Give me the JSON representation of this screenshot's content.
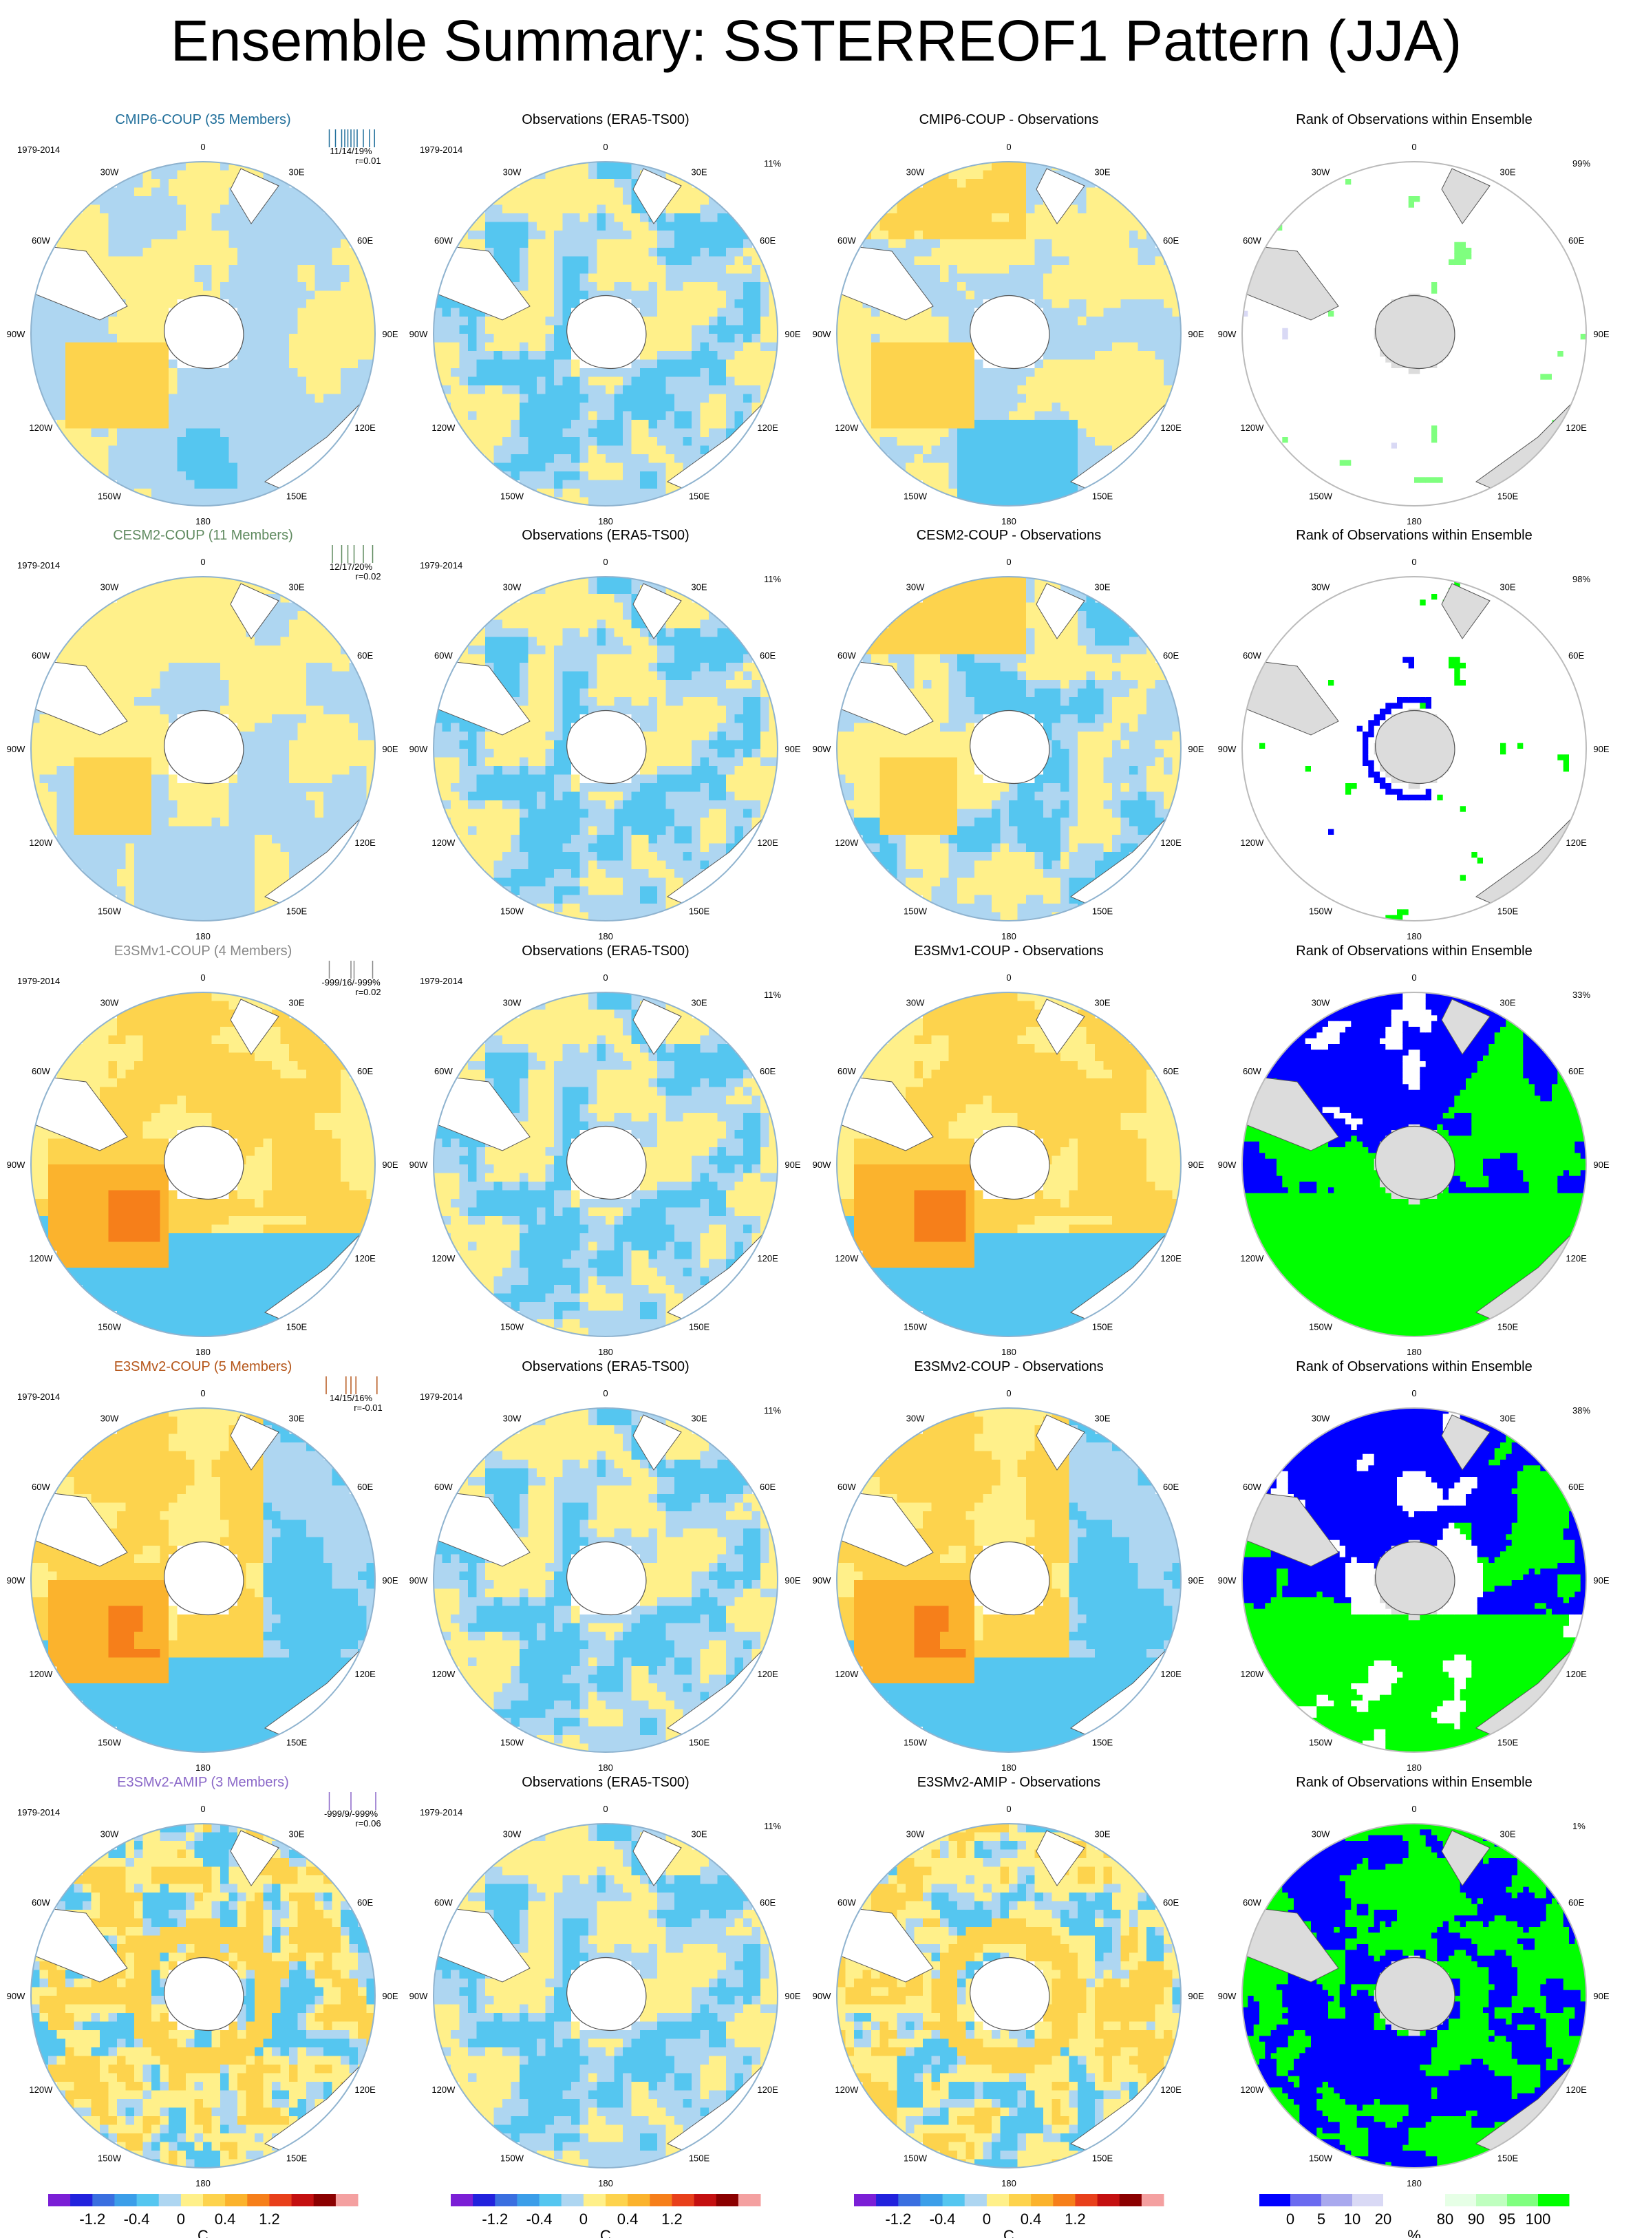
{
  "title": "Ensemble Summary: SSTERREOF1 Pattern (JJA)",
  "period": "1979-2014",
  "lon_labels": [
    "0",
    "30E",
    "60E",
    "90E",
    "120E",
    "150E",
    "180",
    "150W",
    "120W",
    "90W",
    "60W",
    "30W"
  ],
  "colors": {
    "cmip6": "#1f6e9a",
    "cesm2": "#5f8a5f",
    "e3smv1": "#888888",
    "e3smv2": "#b5561a",
    "amip": "#8a67c8",
    "land_gray": "#dcdcdc",
    "ocean_outline": "#bfbfbf"
  },
  "chart_data": {
    "type": "heatmap",
    "units_anomaly": "C",
    "units_rank": "%",
    "anomaly_colorbar": {
      "colors": [
        "#7b1fd6",
        "#2222dd",
        "#3a6fe0",
        "#3b9ee9",
        "#55c6f0",
        "#aed6f1",
        "#fff08a",
        "#fdd34d",
        "#fbb32d",
        "#f67f1a",
        "#e8401b",
        "#c41010",
        "#8b0000",
        "#f4a0a0"
      ],
      "tick_labels": [
        "-1.2",
        "-0.4",
        "0",
        "0.4",
        "1.2"
      ],
      "tick_positions": [
        2,
        4,
        6,
        8,
        10
      ]
    },
    "rank_colorbar": {
      "colors": [
        "#0000ff",
        "#6b6bf0",
        "#a9a9ee",
        "#d9d9f5",
        "#ffffff",
        "#ffffff",
        "#e6ffe6",
        "#bfffbf",
        "#7fff7f",
        "#00ff00"
      ],
      "tick_labels": [
        "0",
        "5",
        "10",
        "20",
        "80",
        "90",
        "95",
        "100"
      ],
      "tick_positions": [
        1,
        2,
        3,
        4,
        6,
        7,
        8,
        9
      ]
    },
    "rows": [
      {
        "model": "CMIP6-COUP (35 Members)",
        "color_key": "cmip6",
        "stats": "11/14/19%",
        "r": "r=0.01",
        "obs_title": "Observations (ERA5-TS00)",
        "obs_pct": "11%",
        "diff_title": "CMIP6-COUP - Observations",
        "rank_title": "Rank of Observations within Ensemble",
        "rank_pct": "99%",
        "ticks": [
          0.15,
          0.25,
          0.35,
          0.4,
          0.45,
          0.5,
          0.55,
          0.6,
          0.7,
          0.8,
          0.88
        ],
        "model_field": "cmip6",
        "diff_field": "cmip6diff",
        "rank_field": "rank_sparse_a"
      },
      {
        "model": "CESM2-COUP (11 Members)",
        "color_key": "cesm2",
        "stats": "12/17/20%",
        "r": "r=0.02",
        "obs_title": "Observations (ERA5-TS00)",
        "obs_pct": "11%",
        "diff_title": "CESM2-COUP - Observations",
        "rank_title": "Rank of Observations within Ensemble",
        "rank_pct": "98%",
        "ticks": [
          0.2,
          0.35,
          0.45,
          0.55,
          0.7,
          0.85
        ],
        "model_field": "cesm2",
        "diff_field": "cesm2diff",
        "rank_field": "rank_sparse_b"
      },
      {
        "model": "E3SMv1-COUP (4 Members)",
        "color_key": "e3smv1",
        "stats": "-999/16/-999%",
        "prefix": "30E",
        "r": "r=0.02",
        "obs_title": "Observations (ERA5-TS00)",
        "obs_pct": "11%",
        "diff_title": "E3SMv1-COUP - Observations",
        "rank_title": "Rank of Observations within Ensemble",
        "rank_pct": "33%",
        "ticks": [
          0.15,
          0.5,
          0.55,
          0.85
        ],
        "model_field": "e3smv1",
        "diff_field": "e3smv1diff",
        "rank_field": "rank_v1"
      },
      {
        "model": "E3SMv2-COUP (5 Members)",
        "color_key": "e3smv2",
        "stats": "14/15/16%",
        "r": "r=-0.01",
        "obs_title": "Observations (ERA5-TS00)",
        "obs_pct": "11%",
        "diff_title": "E3SMv2-COUP - Observations",
        "rank_title": "Rank of Observations within Ensemble",
        "rank_pct": "38%",
        "ticks": [
          0.1,
          0.42,
          0.5,
          0.58,
          0.92
        ],
        "model_field": "e3smv2",
        "diff_field": "e3smv2diff",
        "rank_field": "rank_v2"
      },
      {
        "model": "E3SMv2-AMIP (3 Members)",
        "color_key": "amip",
        "stats": "-999/9/-999%",
        "r": "r=0.06",
        "obs_title": "Observations (ERA5-TS00)",
        "obs_pct": "11%",
        "diff_title": "E3SMv2-AMIP - Observations",
        "rank_title": "Rank of Observations within Ensemble",
        "rank_pct": "1%",
        "ticks": [
          0.15,
          0.5,
          0.9
        ],
        "model_field": "amip",
        "diff_field": "amipdiff",
        "rank_field": "rank_amip"
      }
    ]
  },
  "colorbar_units": [
    "C",
    "C",
    "C",
    "%"
  ]
}
